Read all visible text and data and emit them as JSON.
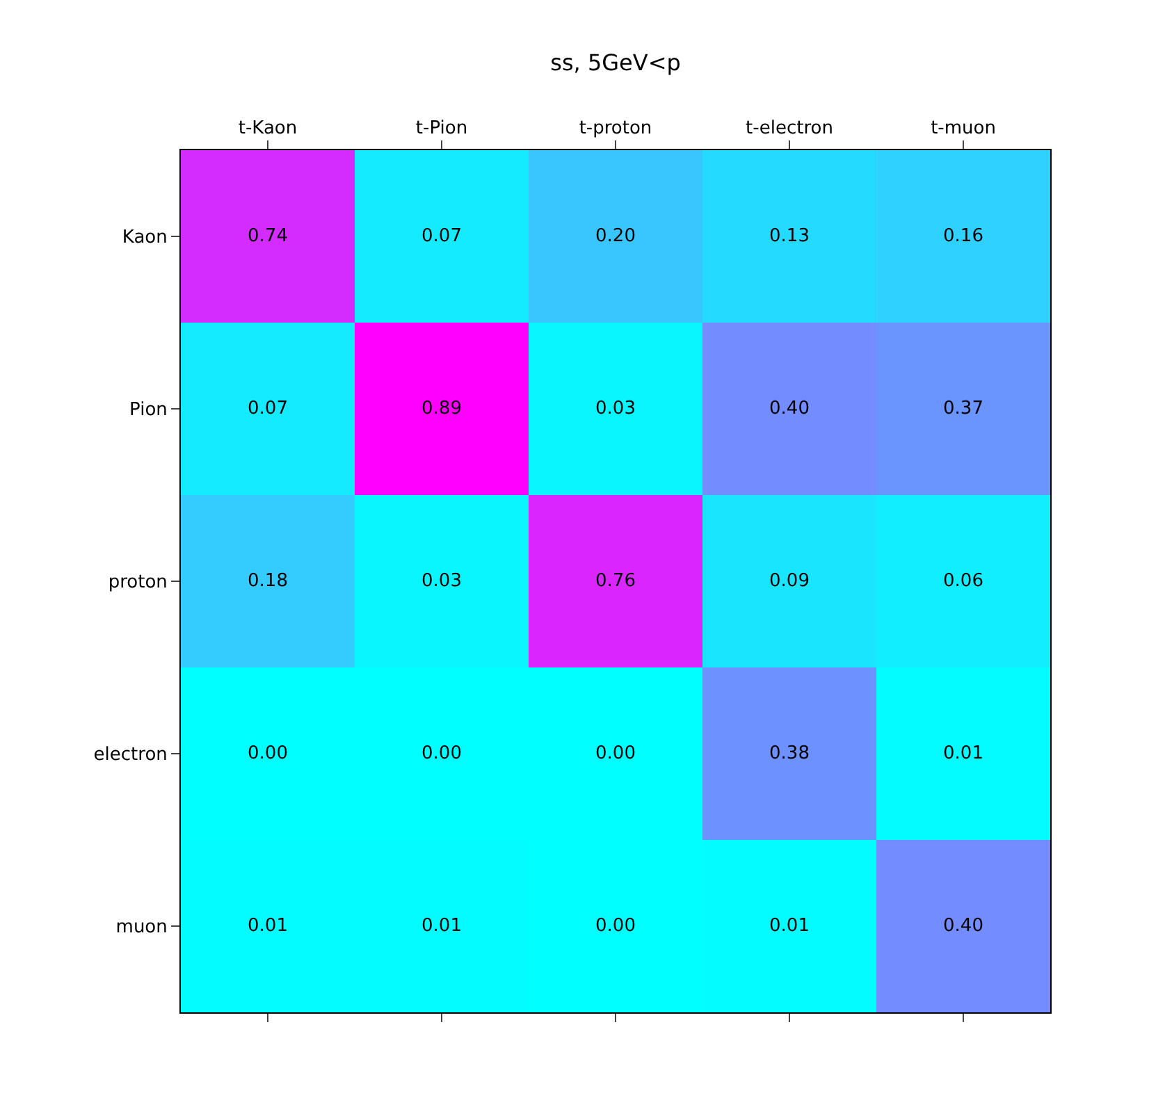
{
  "chart_data": {
    "type": "heatmap",
    "title": "ss, 5GeV<p",
    "categories": [
      "t-Kaon",
      "t-Pion",
      "t-proton",
      "t-electron",
      "t-muon"
    ],
    "y_categories": [
      "Kaon",
      "Pion",
      "proton",
      "electron",
      "muon"
    ],
    "cells": [
      [
        0.74,
        0.07,
        0.2,
        0.13,
        0.16
      ],
      [
        0.07,
        0.89,
        0.03,
        0.4,
        0.37
      ],
      [
        0.18,
        0.03,
        0.76,
        0.09,
        0.06
      ],
      [
        0.0,
        0.0,
        0.0,
        0.38,
        0.01
      ],
      [
        0.01,
        0.01,
        0.0,
        0.01,
        0.4
      ]
    ],
    "cell_labels": [
      [
        "0.74",
        "0.07",
        "0.20",
        "0.13",
        "0.16"
      ],
      [
        "0.07",
        "0.89",
        "0.03",
        "0.40",
        "0.37"
      ],
      [
        "0.18",
        "0.03",
        "0.76",
        "0.09",
        "0.06"
      ],
      [
        "0.00",
        "0.00",
        "0.00",
        "0.38",
        "0.01"
      ],
      [
        "0.01",
        "0.01",
        "0.00",
        "0.01",
        "0.40"
      ]
    ]
  }
}
